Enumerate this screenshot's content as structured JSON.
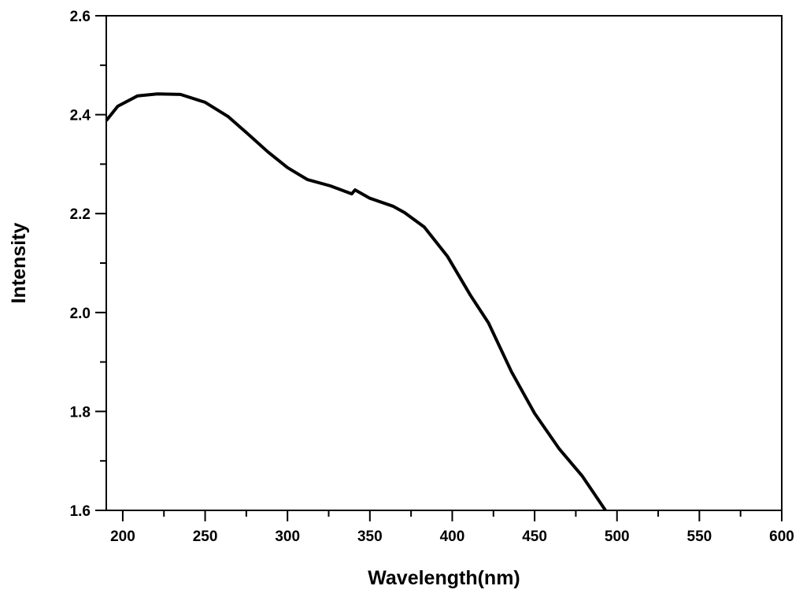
{
  "chart_data": {
    "type": "line",
    "title": "",
    "xlabel": "Wavelength(nm)",
    "ylabel": "Intensity",
    "xlim": [
      190,
      600
    ],
    "ylim": [
      1.6,
      2.6
    ],
    "xticks": [
      200,
      250,
      300,
      350,
      400,
      450,
      500,
      550,
      600
    ],
    "yticks": [
      1.6,
      1.8,
      2.0,
      2.2,
      2.4,
      2.6
    ],
    "xtick_labels": [
      "200",
      "250",
      "300",
      "350",
      "400",
      "450",
      "500",
      "550",
      "600"
    ],
    "ytick_labels": [
      "1.6",
      "1.8",
      "2.0",
      "2.2",
      "2.4",
      "2.6"
    ],
    "grid": false,
    "line_color": "#000000",
    "series": [
      {
        "name": "Intensity",
        "x": [
          190,
          197,
          209,
          221,
          235,
          250,
          264,
          276,
          288,
          300,
          312,
          326,
          339,
          341,
          350,
          364,
          371,
          383,
          397,
          411,
          422,
          436,
          450,
          465,
          479,
          493
        ],
        "y": [
          2.388,
          2.417,
          2.438,
          2.442,
          2.441,
          2.425,
          2.396,
          2.361,
          2.325,
          2.293,
          2.269,
          2.256,
          2.24,
          2.248,
          2.231,
          2.215,
          2.202,
          2.173,
          2.114,
          2.035,
          1.979,
          1.88,
          1.796,
          1.724,
          1.669,
          1.6
        ]
      }
    ]
  }
}
